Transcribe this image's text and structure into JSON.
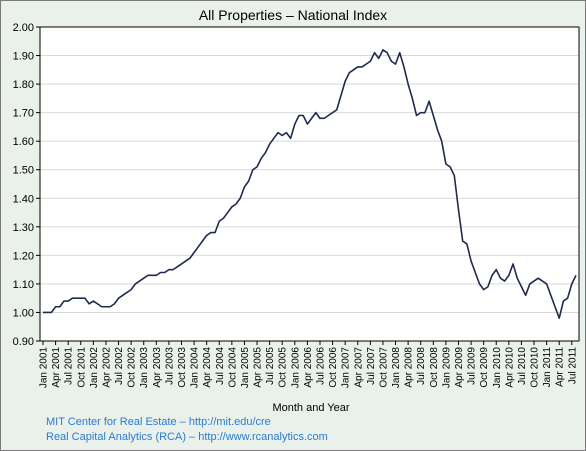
{
  "chart_data": {
    "type": "line",
    "title": "All Properties – National Index",
    "xlabel": "Month and Year",
    "ylabel": "",
    "ylim": [
      0.9,
      2.0
    ],
    "yticks": [
      "0.90",
      "1.00",
      "1.10",
      "1.20",
      "1.30",
      "1.40",
      "1.50",
      "1.60",
      "1.70",
      "1.80",
      "1.90",
      "2.00"
    ],
    "xticks": [
      "Jan 2001",
      "Apr 2001",
      "Jul 2001",
      "Oct 2001",
      "Jan 2002",
      "Apr 2002",
      "Jul 2002",
      "Oct 2002",
      "Jan 2003",
      "Apr 2003",
      "Jul 2003",
      "Oct 2003",
      "Jan 2004",
      "Apr 2004",
      "Jul 2004",
      "Oct 2004",
      "Jan 2005",
      "Apr 2005",
      "Jul 2005",
      "Oct 2005",
      "Jan 2006",
      "Apr 2006",
      "Jul 2006",
      "Oct 2006",
      "Jan 2007",
      "Apr 2007",
      "Jul 2007",
      "Oct 2007",
      "Jan 2008",
      "Apr 2008",
      "Jul 2008",
      "Oct 2008",
      "Jan 2009",
      "Apr 2009",
      "Jul 2009",
      "Oct 2009",
      "Jan 2010",
      "Apr 2010",
      "Jul 2010",
      "Oct 2010",
      "Jan 2011",
      "Apr 2011",
      "Jul 2011"
    ],
    "grid": true,
    "line_color": "#1f2a4d",
    "series": [
      {
        "x": [
          "Jan 2001",
          "Feb 2001",
          "Mar 2001",
          "Apr 2001",
          "May 2001",
          "Jun 2001",
          "Jul 2001",
          "Aug 2001",
          "Sep 2001",
          "Oct 2001",
          "Nov 2001",
          "Dec 2001",
          "Jan 2002",
          "Feb 2002",
          "Mar 2002",
          "Apr 2002",
          "May 2002",
          "Jun 2002",
          "Jul 2002",
          "Aug 2002",
          "Sep 2002",
          "Oct 2002",
          "Nov 2002",
          "Dec 2002",
          "Jan 2003",
          "Feb 2003",
          "Mar 2003",
          "Apr 2003",
          "May 2003",
          "Jun 2003",
          "Jul 2003",
          "Aug 2003",
          "Sep 2003",
          "Oct 2003",
          "Nov 2003",
          "Dec 2003",
          "Jan 2004",
          "Feb 2004",
          "Mar 2004",
          "Apr 2004",
          "May 2004",
          "Jun 2004",
          "Jul 2004",
          "Aug 2004",
          "Sep 2004",
          "Oct 2004",
          "Nov 2004",
          "Dec 2004",
          "Jan 2005",
          "Feb 2005",
          "Mar 2005",
          "Apr 2005",
          "May 2005",
          "Jun 2005",
          "Jul 2005",
          "Aug 2005",
          "Sep 2005",
          "Oct 2005",
          "Nov 2005",
          "Dec 2005",
          "Jan 2006",
          "Feb 2006",
          "Mar 2006",
          "Apr 2006",
          "May 2006",
          "Jun 2006",
          "Jul 2006",
          "Aug 2006",
          "Sep 2006",
          "Oct 2006",
          "Nov 2006",
          "Dec 2006",
          "Jan 2007",
          "Feb 2007",
          "Mar 2007",
          "Apr 2007",
          "May 2007",
          "Jun 2007",
          "Jul 2007",
          "Aug 2007",
          "Sep 2007",
          "Oct 2007",
          "Nov 2007",
          "Dec 2007",
          "Jan 2008",
          "Feb 2008",
          "Mar 2008",
          "Apr 2008",
          "May 2008",
          "Jun 2008",
          "Jul 2008",
          "Aug 2008",
          "Sep 2008",
          "Oct 2008",
          "Nov 2008",
          "Dec 2008",
          "Jan 2009",
          "Feb 2009",
          "Mar 2009",
          "Apr 2009",
          "May 2009",
          "Jun 2009",
          "Jul 2009",
          "Aug 2009",
          "Sep 2009",
          "Oct 2009",
          "Nov 2009",
          "Dec 2009",
          "Jan 2010",
          "Feb 2010",
          "Mar 2010",
          "Apr 2010",
          "May 2010",
          "Jun 2010",
          "Jul 2010",
          "Aug 2010",
          "Sep 2010",
          "Oct 2010",
          "Nov 2010",
          "Dec 2010",
          "Jan 2011",
          "Feb 2011",
          "Mar 2011",
          "Apr 2011",
          "May 2011",
          "Jun 2011",
          "Jul 2011",
          "Aug 2011"
        ],
        "values": [
          1.0,
          1.0,
          1.0,
          1.02,
          1.02,
          1.04,
          1.04,
          1.05,
          1.05,
          1.05,
          1.05,
          1.03,
          1.04,
          1.03,
          1.02,
          1.02,
          1.02,
          1.03,
          1.05,
          1.06,
          1.07,
          1.08,
          1.1,
          1.11,
          1.12,
          1.13,
          1.13,
          1.13,
          1.14,
          1.14,
          1.15,
          1.15,
          1.16,
          1.17,
          1.18,
          1.19,
          1.21,
          1.23,
          1.25,
          1.27,
          1.28,
          1.28,
          1.32,
          1.33,
          1.35,
          1.37,
          1.38,
          1.4,
          1.44,
          1.46,
          1.5,
          1.51,
          1.54,
          1.56,
          1.59,
          1.61,
          1.63,
          1.62,
          1.63,
          1.61,
          1.66,
          1.69,
          1.69,
          1.66,
          1.68,
          1.7,
          1.68,
          1.68,
          1.69,
          1.7,
          1.71,
          1.76,
          1.81,
          1.84,
          1.85,
          1.86,
          1.86,
          1.87,
          1.88,
          1.91,
          1.89,
          1.92,
          1.91,
          1.88,
          1.87,
          1.91,
          1.86,
          1.8,
          1.75,
          1.69,
          1.7,
          1.7,
          1.74,
          1.69,
          1.64,
          1.6,
          1.52,
          1.51,
          1.48,
          1.36,
          1.25,
          1.24,
          1.18,
          1.14,
          1.1,
          1.08,
          1.09,
          1.13,
          1.15,
          1.12,
          1.11,
          1.13,
          1.17,
          1.12,
          1.09,
          1.06,
          1.1,
          1.11,
          1.12,
          1.11,
          1.1,
          1.06,
          1.02,
          0.98,
          1.04,
          1.05,
          1.1,
          1.13
        ]
      }
    ]
  },
  "credits": [
    "MIT Center for Real Estate – http://mit.edu/cre",
    "Real Capital Analytics (RCA) – http://www.rcanalytics.com"
  ]
}
